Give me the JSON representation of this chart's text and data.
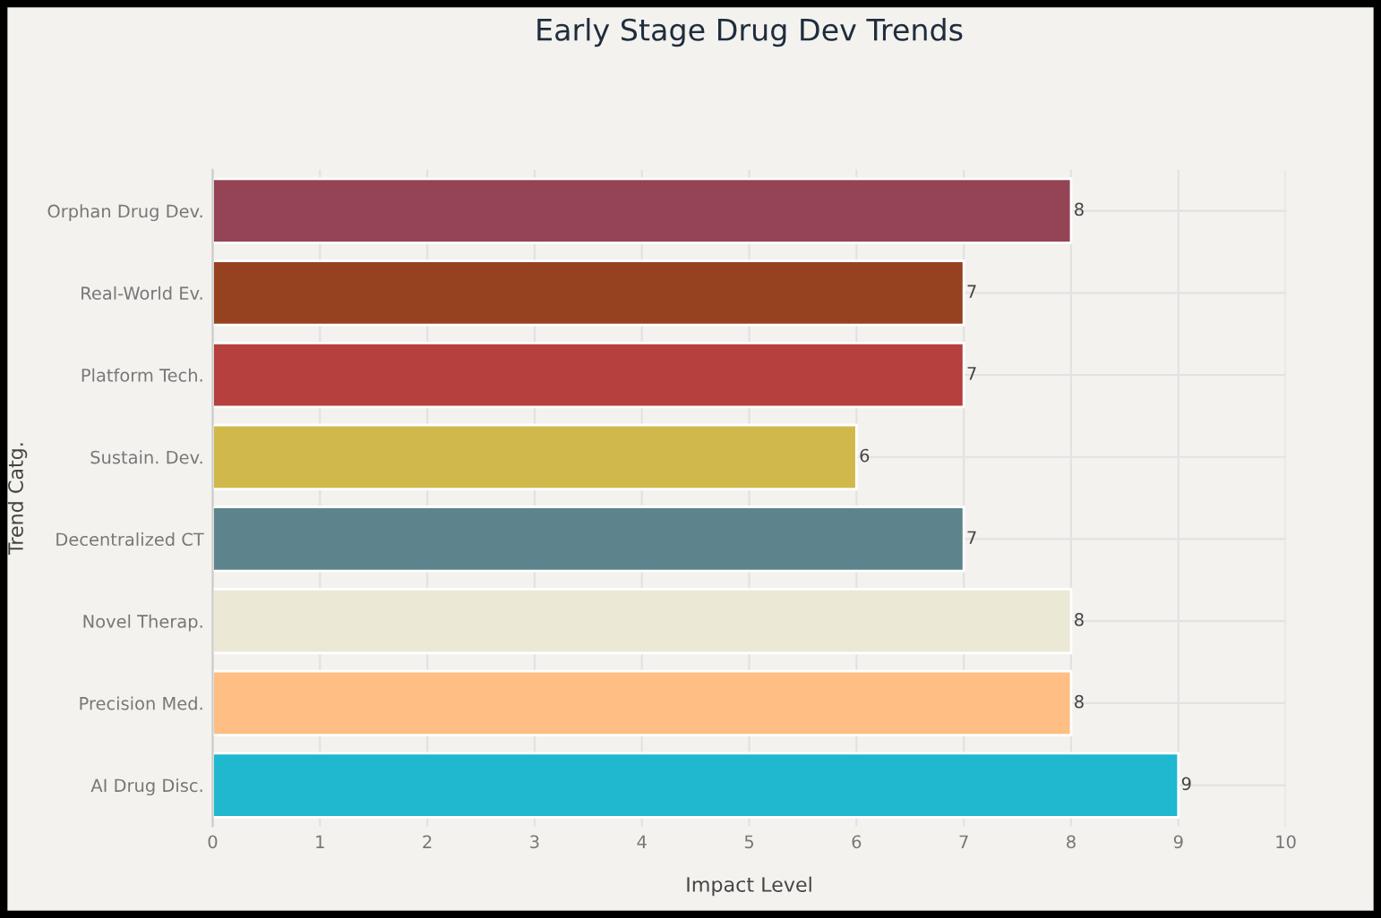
{
  "chart_data": {
    "type": "bar",
    "orientation": "horizontal",
    "title": "Early Stage Drug Dev Trends",
    "xlabel": "Impact Level",
    "ylabel": "Trend Catg.",
    "categories": [
      "Orphan Drug Dev.",
      "Real-World Ev.",
      "Platform Tech.",
      "Sustain. Dev.",
      "Decentralized CT",
      "Novel Therap.",
      "Precision Med.",
      "AI Drug Disc."
    ],
    "values": [
      8,
      7,
      7,
      6,
      7,
      8,
      8,
      9
    ],
    "colors": [
      "#944454",
      "#964120",
      "#b5403d",
      "#d1b84a",
      "#5d848c",
      "#ebe8d6",
      "#ffbe83",
      "#1fb8cf"
    ],
    "xlim": [
      0,
      10
    ],
    "xticks": [
      0,
      1,
      2,
      3,
      4,
      5,
      6,
      7,
      8,
      9,
      10
    ],
    "grid": true,
    "data_labels": true
  }
}
